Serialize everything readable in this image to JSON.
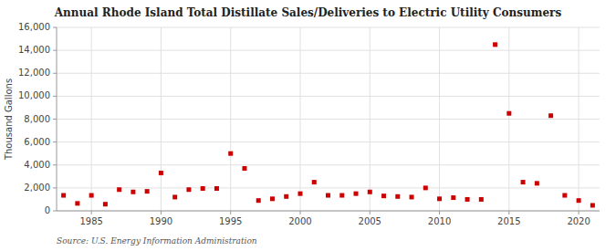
{
  "chart_data": {
    "type": "scatter",
    "title": "Annual Rhode Island Total Distillate Sales/Deliveries to Electric Utility Consumers",
    "ylabel": "Thousand Gallons",
    "annotations": [
      "Source: U.S. Energy Information Administration"
    ],
    "x": [
      1983,
      1984,
      1985,
      1986,
      1987,
      1988,
      1989,
      1990,
      1991,
      1992,
      1993,
      1994,
      1995,
      1996,
      1997,
      1998,
      1999,
      2000,
      2001,
      2002,
      2003,
      2004,
      2005,
      2006,
      2007,
      2008,
      2009,
      2010,
      2011,
      2012,
      2013,
      2014,
      2015,
      2016,
      2017,
      2018,
      2019,
      2020,
      2021
    ],
    "values": [
      1350,
      650,
      1350,
      580,
      1850,
      1650,
      1700,
      3300,
      1200,
      1850,
      1950,
      1950,
      5000,
      3700,
      900,
      1050,
      1250,
      1500,
      2500,
      1350,
      1350,
      1500,
      1650,
      1300,
      1250,
      1200,
      2000,
      1050,
      1150,
      1000,
      1000,
      14500,
      8500,
      2500,
      2400,
      8300,
      1350,
      900,
      480
    ],
    "color": "#cc0000",
    "marker": "square",
    "xlim": [
      1982.5,
      2021.5
    ],
    "ylim": [
      0,
      16000
    ],
    "xticks": [
      1985,
      1990,
      1995,
      2000,
      2005,
      2010,
      2015,
      2020
    ],
    "yticks": [
      0,
      {
        "value": 2000,
        "label": "2,000"
      },
      {
        "value": 4000,
        "label": "4,000"
      },
      {
        "value": 6000,
        "label": "6,000"
      },
      {
        "value": 8000,
        "label": "8,000"
      },
      {
        "value": 10000,
        "label": "10,000"
      },
      {
        "value": 12000,
        "label": "12,000"
      },
      {
        "value": 14000,
        "label": "14,000"
      },
      {
        "value": 16000,
        "label": "16,000"
      }
    ],
    "grid": true
  }
}
